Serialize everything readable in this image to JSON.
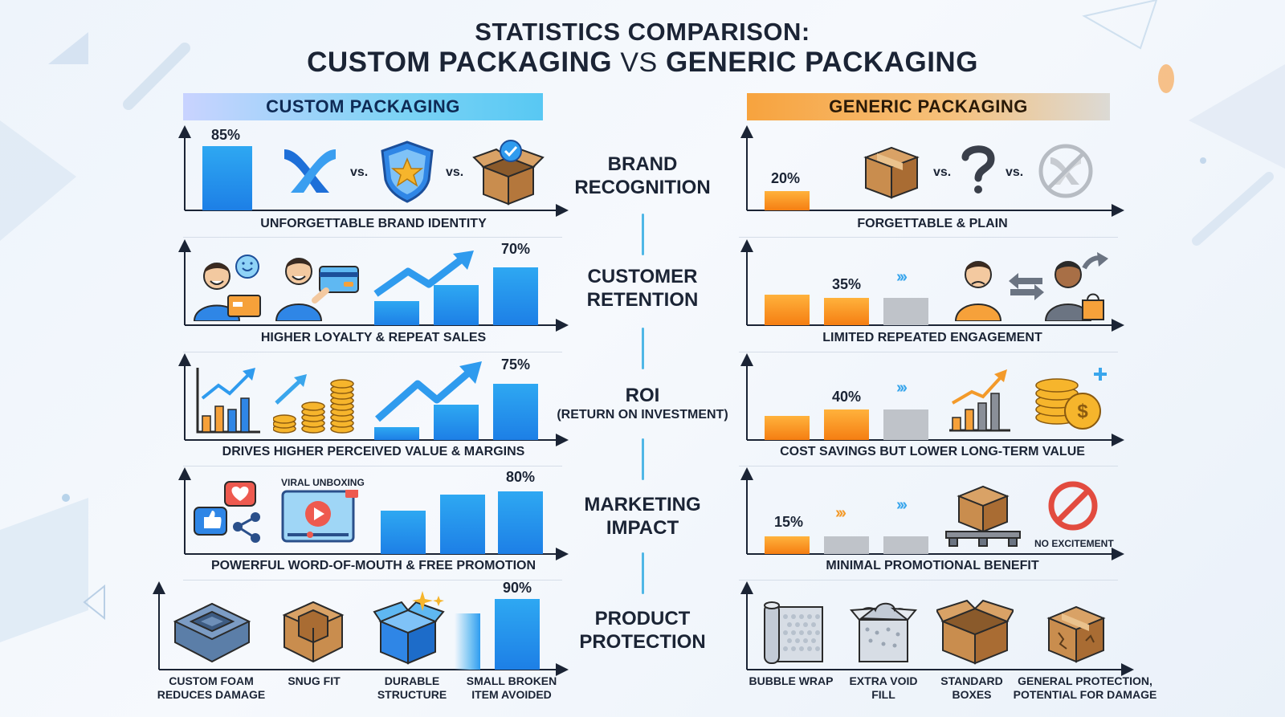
{
  "title": {
    "line1": "STATISTICS COMPARISON:",
    "line2_a": "CUSTOM PACKAGING",
    "line2_vs": "VS",
    "line2_b": "GENERIC PACKAGING"
  },
  "columns": {
    "left": "CUSTOM PACKAGING",
    "right": "GENERIC PACKAGING"
  },
  "vs_label": "vs.",
  "colors": {
    "blue": "#1d7fe6",
    "orange": "#f57e12",
    "gray": "#bfc3c9",
    "divider": "#4fb7e6"
  },
  "categories": [
    {
      "id": "brand",
      "label1": "BRAND",
      "label2": "RECOGNITION",
      "sub": ""
    },
    {
      "id": "retention",
      "label1": "CUSTOMER",
      "label2": "RETENTION",
      "sub": ""
    },
    {
      "id": "roi",
      "label1": "ROI",
      "label2": "",
      "sub": "(RETURN ON INVESTMENT)"
    },
    {
      "id": "marketing",
      "label1": "MARKETING",
      "label2": "IMPACT",
      "sub": ""
    },
    {
      "id": "protection",
      "label1": "PRODUCT",
      "label2": "PROTECTION",
      "sub": ""
    }
  ],
  "custom": {
    "brand": {
      "value": 85,
      "label": "85%",
      "caption": "UNFORGETTABLE BRAND IDENTITY",
      "icons": [
        "brand-logo-icon",
        "shield-star-icon",
        "open-box-check-icon"
      ]
    },
    "retention": {
      "value": 70,
      "label": "70%",
      "caption": "HIGHER LOYALTY & REPEAT SALES",
      "icons": [
        "happy-customer-icon",
        "customer-card-icon",
        "growth-arrow-icon"
      ]
    },
    "roi": {
      "value": 75,
      "label": "75%",
      "caption": "DRIVES HIGHER PERCEIVED VALUE & MARGINS",
      "icons": [
        "growth-chart-icon",
        "coin-stack-icon",
        "growth-arrow-icon"
      ]
    },
    "marketing": {
      "value": 80,
      "label": "80%",
      "caption": "POWERFUL WORD-OF-MOUTH & FREE PROMOTION",
      "viral": "VIRAL UNBOXING",
      "icons": [
        "social-icon",
        "video-play-icon"
      ]
    },
    "protection": {
      "value": 90,
      "label": "90%",
      "items": [
        "CUSTOM FOAM REDUCES DAMAGE",
        "SNUG FIT",
        "DURABLE STRUCTURE",
        "SMALL BROKEN ITEM AVOIDED"
      ],
      "icons": [
        "foam-insert-icon",
        "snug-box-icon",
        "sparkle-box-icon"
      ]
    }
  },
  "generic": {
    "brand": {
      "value": 20,
      "label": "20%",
      "caption": "FORGETTABLE & PLAIN",
      "icons": [
        "plain-box-icon",
        "question-icon",
        "faded-logo-icon"
      ]
    },
    "retention": {
      "value": 35,
      "label": "35%",
      "caption": "LIMITED REPEATED ENGAGEMENT",
      "icons": [
        "sad-customer-icon",
        "swap-arrows-icon",
        "leaving-customer-icon"
      ]
    },
    "roi": {
      "value": 40,
      "label": "40%",
      "caption": "COST SAVINGS BUT LOWER LONG-TERM VALUE",
      "icons": [
        "small-growth-chart-icon",
        "coins-dollar-icon"
      ]
    },
    "marketing": {
      "value": 15,
      "label": "15%",
      "caption": "MINIMAL PROMOTIONAL BENEFIT",
      "no_excitement": "NO EXCITEMENT",
      "icons": [
        "box-on-pallet-icon",
        "prohibited-icon"
      ]
    },
    "protection": {
      "items": [
        "BUBBLE WRAP",
        "EXTRA VOID FILL",
        "STANDARD BOXES",
        "GENERAL PROTECTION, POTENTIAL FOR DAMAGE"
      ],
      "icons": [
        "bubble-wrap-icon",
        "void-fill-icon",
        "standard-box-icon",
        "damaged-box-icon"
      ]
    }
  }
}
